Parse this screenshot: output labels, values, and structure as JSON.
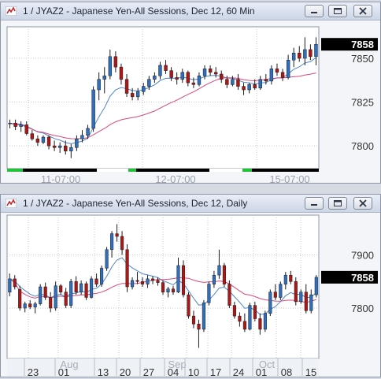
{
  "windows": [
    {
      "title": "1 / JYAZ2 - Japanese Yen-All Sessions, Dec 12, 60 Min",
      "price_label": "7858",
      "chart_data": {
        "type": "candlestick",
        "ylim": [
          7787,
          7868
        ],
        "y_ticks": [
          7800,
          7825,
          7850
        ],
        "x_tick_labels": [
          "11-07:00",
          "12-07:00",
          "15-07:00"
        ],
        "current_price": 7858,
        "candles": [
          [
            7813,
            7815,
            7810,
            7813
          ],
          [
            7813,
            7815,
            7809,
            7811
          ],
          [
            7811,
            7814,
            7808,
            7812
          ],
          [
            7812,
            7814,
            7806,
            7807
          ],
          [
            7807,
            7809,
            7803,
            7804
          ],
          [
            7804,
            7806,
            7800,
            7802
          ],
          [
            7802,
            7806,
            7801,
            7805
          ],
          [
            7805,
            7806,
            7798,
            7800
          ],
          [
            7800,
            7803,
            7797,
            7799
          ],
          [
            7799,
            7802,
            7796,
            7800
          ],
          [
            7800,
            7803,
            7795,
            7797
          ],
          [
            7797,
            7801,
            7793,
            7799
          ],
          [
            7799,
            7806,
            7797,
            7804
          ],
          [
            7804,
            7809,
            7802,
            7806
          ],
          [
            7806,
            7812,
            7804,
            7810
          ],
          [
            7810,
            7834,
            7808,
            7832
          ],
          [
            7832,
            7842,
            7826,
            7838
          ],
          [
            7838,
            7845,
            7830,
            7840
          ],
          [
            7840,
            7855,
            7838,
            7851
          ],
          [
            7851,
            7854,
            7842,
            7845
          ],
          [
            7845,
            7847,
            7835,
            7838
          ],
          [
            7838,
            7841,
            7828,
            7830
          ],
          [
            7830,
            7833,
            7826,
            7828
          ],
          [
            7828,
            7833,
            7826,
            7831
          ],
          [
            7831,
            7836,
            7829,
            7834
          ],
          [
            7834,
            7840,
            7832,
            7838
          ],
          [
            7838,
            7842,
            7836,
            7840
          ],
          [
            7840,
            7848,
            7838,
            7846
          ],
          [
            7846,
            7849,
            7841,
            7843
          ],
          [
            7843,
            7845,
            7837,
            7839
          ],
          [
            7839,
            7842,
            7835,
            7838
          ],
          [
            7838,
            7844,
            7836,
            7842
          ],
          [
            7842,
            7843,
            7834,
            7836
          ],
          [
            7836,
            7839,
            7833,
            7835
          ],
          [
            7835,
            7842,
            7834,
            7840
          ],
          [
            7840,
            7846,
            7838,
            7844
          ],
          [
            7844,
            7846,
            7840,
            7842
          ],
          [
            7842,
            7845,
            7839,
            7841
          ],
          [
            7841,
            7843,
            7836,
            7838
          ],
          [
            7838,
            7840,
            7833,
            7835
          ],
          [
            7835,
            7840,
            7834,
            7838
          ],
          [
            7838,
            7841,
            7832,
            7834
          ],
          [
            7834,
            7836,
            7829,
            7832
          ],
          [
            7832,
            7836,
            7830,
            7835
          ],
          [
            7835,
            7838,
            7832,
            7833
          ],
          [
            7833,
            7840,
            7832,
            7838
          ],
          [
            7838,
            7841,
            7835,
            7837
          ],
          [
            7837,
            7846,
            7835,
            7844
          ],
          [
            7844,
            7847,
            7840,
            7842
          ],
          [
            7842,
            7844,
            7837,
            7839
          ],
          [
            7839,
            7852,
            7838,
            7849
          ],
          [
            7849,
            7856,
            7845,
            7853
          ],
          [
            7853,
            7857,
            7848,
            7850
          ],
          [
            7850,
            7862,
            7846,
            7855
          ],
          [
            7855,
            7858,
            7849,
            7851
          ],
          [
            7851,
            7862,
            7846,
            7858
          ]
        ],
        "series": [
          {
            "color": "#4f86c6"
          },
          {
            "color": "#d9487e"
          }
        ]
      }
    },
    {
      "title": "1 / JYAZ2 - Japanese Yen-All Sessions, Dec 12, Daily",
      "price_label": "7858",
      "chart_data": {
        "type": "candlestick",
        "ylim": [
          7705,
          7975
        ],
        "y_ticks": [
          7800,
          7900
        ],
        "x_tick_labels": [
          "23",
          "01",
          "13",
          "20",
          "27",
          "04",
          "10",
          "17",
          "24",
          "01",
          "08",
          "15"
        ],
        "month_labels": [
          "Aug",
          "Sep",
          "Oct"
        ],
        "current_price": 7858,
        "candles": [
          [
            7830,
            7865,
            7822,
            7855
          ],
          [
            7855,
            7862,
            7835,
            7840
          ],
          [
            7835,
            7842,
            7795,
            7800
          ],
          [
            7800,
            7812,
            7792,
            7808
          ],
          [
            7808,
            7815,
            7798,
            7802
          ],
          [
            7802,
            7812,
            7790,
            7808
          ],
          [
            7808,
            7845,
            7805,
            7840
          ],
          [
            7840,
            7848,
            7815,
            7820
          ],
          [
            7820,
            7830,
            7792,
            7800
          ],
          [
            7800,
            7850,
            7795,
            7842
          ],
          [
            7842,
            7845,
            7825,
            7830
          ],
          [
            7830,
            7838,
            7800,
            7805
          ],
          [
            7805,
            7855,
            7800,
            7850
          ],
          [
            7850,
            7860,
            7825,
            7830
          ],
          [
            7830,
            7852,
            7825,
            7846
          ],
          [
            7846,
            7850,
            7815,
            7820
          ],
          [
            7820,
            7860,
            7818,
            7855
          ],
          [
            7855,
            7865,
            7840,
            7845
          ],
          [
            7845,
            7880,
            7840,
            7875
          ],
          [
            7875,
            7915,
            7870,
            7910
          ],
          [
            7910,
            7945,
            7895,
            7940
          ],
          [
            7940,
            7958,
            7925,
            7935
          ],
          [
            7935,
            7945,
            7900,
            7910
          ],
          [
            7910,
            7920,
            7830,
            7840
          ],
          [
            7840,
            7858,
            7835,
            7852
          ],
          [
            7852,
            7868,
            7845,
            7850
          ],
          [
            7850,
            7858,
            7840,
            7845
          ],
          [
            7845,
            7862,
            7838,
            7855
          ],
          [
            7855,
            7860,
            7845,
            7852
          ],
          [
            7852,
            7858,
            7842,
            7848
          ],
          [
            7848,
            7852,
            7825,
            7830
          ],
          [
            7830,
            7840,
            7820,
            7836
          ],
          [
            7836,
            7842,
            7825,
            7830
          ],
          [
            7830,
            7895,
            7828,
            7880
          ],
          [
            7880,
            7890,
            7820,
            7825
          ],
          [
            7825,
            7830,
            7780,
            7785
          ],
          [
            7785,
            7795,
            7762,
            7770
          ],
          [
            7770,
            7778,
            7725,
            7760
          ],
          [
            7760,
            7815,
            7755,
            7810
          ],
          [
            7810,
            7850,
            7805,
            7845
          ],
          [
            7845,
            7870,
            7838,
            7862
          ],
          [
            7862,
            7910,
            7855,
            7880
          ],
          [
            7880,
            7885,
            7840,
            7845
          ],
          [
            7845,
            7852,
            7800,
            7805
          ],
          [
            7805,
            7812,
            7780,
            7785
          ],
          [
            7785,
            7792,
            7765,
            7775
          ],
          [
            7775,
            7790,
            7755,
            7760
          ],
          [
            7760,
            7810,
            7758,
            7805
          ],
          [
            7805,
            7812,
            7775,
            7780
          ],
          [
            7780,
            7790,
            7750,
            7760
          ],
          [
            7760,
            7795,
            7755,
            7790
          ],
          [
            7790,
            7835,
            7785,
            7830
          ],
          [
            7830,
            7845,
            7815,
            7820
          ],
          [
            7820,
            7850,
            7815,
            7845
          ],
          [
            7845,
            7868,
            7835,
            7862
          ],
          [
            7862,
            7870,
            7845,
            7850
          ],
          [
            7850,
            7858,
            7805,
            7812
          ],
          [
            7812,
            7835,
            7808,
            7830
          ],
          [
            7830,
            7845,
            7790,
            7795
          ],
          [
            7795,
            7835,
            7790,
            7825
          ],
          [
            7825,
            7862,
            7820,
            7858
          ]
        ],
        "series": [
          {
            "color": "#4f86c6"
          },
          {
            "color": "#d9487e"
          }
        ]
      }
    }
  ]
}
